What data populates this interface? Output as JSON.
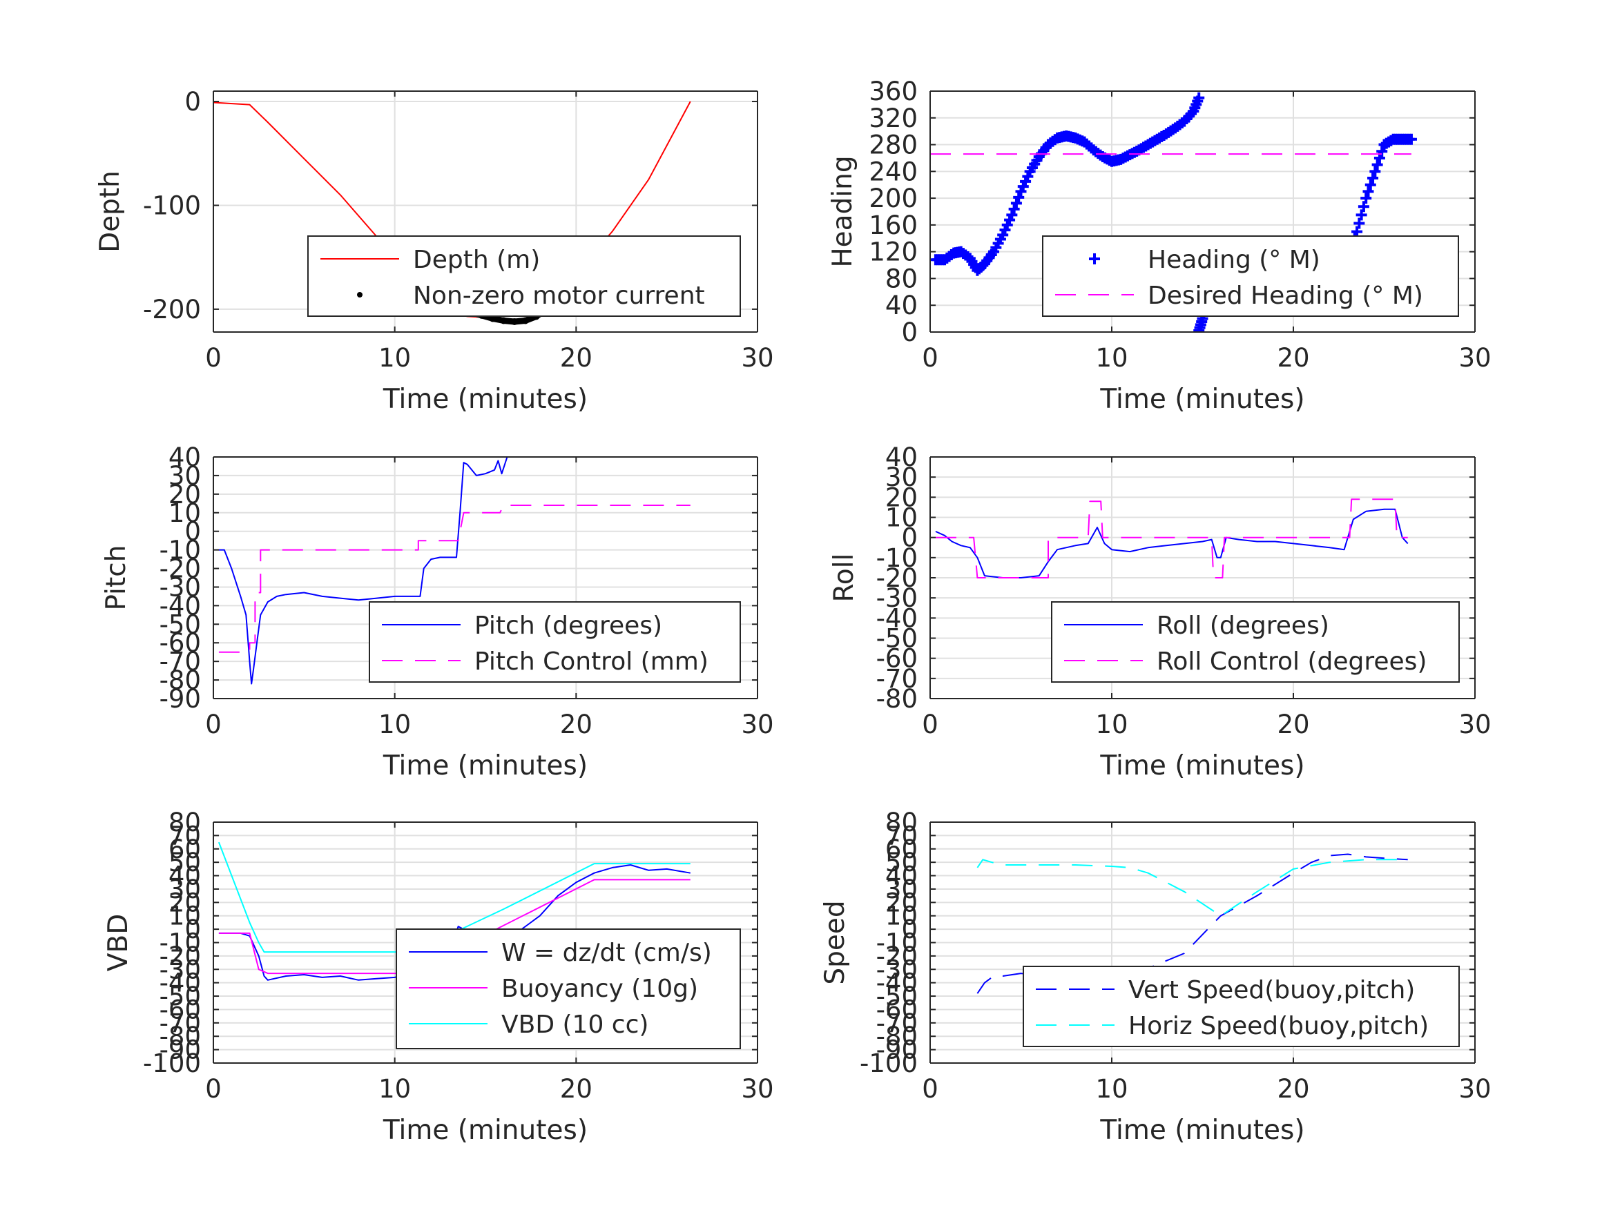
{
  "chart_data": [
    {
      "id": "depth",
      "type": "line",
      "xlabel": "Time (minutes)",
      "ylabel": "Depth",
      "xlim": [
        0,
        30
      ],
      "ylim": [
        -222,
        10
      ],
      "xticks": [
        0,
        10,
        20,
        30
      ],
      "yticks": [
        -200,
        -100,
        0
      ],
      "ytick_labels": [
        "-200",
        "-100",
        "0"
      ],
      "grid": true,
      "legend_position": "lower-right",
      "series": [
        {
          "name": "Depth (m)",
          "color": "#ff0000",
          "style": "solid",
          "x": [
            0,
            2,
            3,
            5,
            7,
            9,
            11,
            12,
            13,
            14,
            15,
            16,
            17,
            18,
            19,
            20,
            21,
            22,
            24,
            26.3
          ],
          "y": [
            -1,
            -3,
            -20,
            -55,
            -90,
            -130,
            -175,
            -195,
            -203,
            -207,
            -208,
            -211,
            -210,
            -205,
            -192,
            -175,
            -145,
            -125,
            -75,
            0
          ]
        },
        {
          "name": "Non-zero motor current",
          "color": "#000000",
          "style": "dots",
          "x": [
            11.2,
            11.8,
            12.4,
            13.0,
            13.6,
            14.2,
            14.8,
            15.4,
            16.0,
            16.6,
            17.2,
            17.8,
            18.4,
            19.0,
            19.6,
            20.2,
            20.8,
            21.1
          ],
          "y": [
            -187,
            -194,
            -199,
            -203,
            -201,
            -203,
            -206,
            -209,
            -211,
            -212,
            -211,
            -207,
            -200,
            -191,
            -181,
            -168,
            -155,
            -143
          ]
        }
      ]
    },
    {
      "id": "heading",
      "type": "line",
      "xlabel": "Time (minutes)",
      "ylabel": "Heading",
      "xlim": [
        0,
        30
      ],
      "ylim": [
        0,
        360
      ],
      "xticks": [
        0,
        10,
        20,
        30
      ],
      "yticks": [
        0,
        40,
        80,
        120,
        160,
        200,
        240,
        280,
        320,
        360
      ],
      "ytick_labels": [
        "0",
        "40",
        "80",
        "120",
        "160",
        "200",
        "240",
        "280",
        "320",
        "360"
      ],
      "grid": true,
      "legend_position": "lower-right",
      "series": [
        {
          "name": "Heading (° M)",
          "color": "#0000ff",
          "style": "plus",
          "x": [
            0.3,
            0.8,
            1.3,
            1.7,
            2.2,
            2.6,
            3.0,
            3.5,
            4.0,
            4.5,
            5.0,
            5.5,
            6.0,
            6.5,
            7.0,
            7.5,
            8.0,
            8.5,
            9.0,
            9.5,
            10.0,
            10.5,
            11.0,
            11.5,
            12.0,
            12.5,
            13.0,
            13.5,
            14.0,
            14.5,
            14.8,
            14.8,
            15.0,
            15.3,
            15.6,
            16.0,
            16.5,
            17.0,
            17.5,
            18.0,
            18.5,
            19.0,
            19.5,
            20.0,
            20.5,
            21.0,
            21.5,
            22.0,
            22.5,
            23.0,
            23.5,
            24.0,
            24.5,
            25.0,
            25.5,
            26.0,
            26.5
          ],
          "y": [
            108,
            108,
            118,
            120,
            110,
            92,
            102,
            120,
            145,
            175,
            210,
            240,
            262,
            280,
            290,
            293,
            290,
            284,
            272,
            262,
            255,
            258,
            265,
            272,
            280,
            288,
            296,
            305,
            315,
            330,
            350,
            2,
            20,
            45,
            68,
            88,
            98,
            105,
            110,
            112,
            115,
            118,
            120,
            118,
            120,
            122,
            128,
            120,
            125,
            118,
            150,
            200,
            240,
            280,
            288,
            288,
            288
          ]
        },
        {
          "name": "Desired Heading (° M)",
          "color": "#ff00ff",
          "style": "dashed",
          "x": [
            0,
            26.5
          ],
          "y": [
            266,
            266
          ]
        }
      ]
    },
    {
      "id": "pitch",
      "type": "line",
      "xlabel": "Time (minutes)",
      "ylabel": "Pitch",
      "xlim": [
        0,
        30
      ],
      "ylim": [
        -90,
        40
      ],
      "xticks": [
        0,
        10,
        20,
        30
      ],
      "yticks": [
        -90,
        -80,
        -70,
        -60,
        -50,
        -40,
        -30,
        -20,
        -10,
        0,
        10,
        20,
        30,
        40
      ],
      "ytick_labels": [
        "-90",
        "-80",
        "-70",
        "-60",
        "-50",
        "-40",
        "-30",
        "-20",
        "-10",
        "0",
        "10",
        "20",
        "30",
        "40"
      ],
      "grid": true,
      "legend_position": "lower-right",
      "series": [
        {
          "name": "Pitch (degrees)",
          "color": "#0000ff",
          "style": "solid",
          "x": [
            0.3,
            0.6,
            1.0,
            1.5,
            1.8,
            2.0,
            2.1,
            2.2,
            2.4,
            2.6,
            3.0,
            3.5,
            4.0,
            5.0,
            6.0,
            7.0,
            8.0,
            9.0,
            10.0,
            11.0,
            11.4,
            11.6,
            12.0,
            12.5,
            13.0,
            13.4,
            13.6,
            13.8,
            14.0,
            14.5,
            15.0,
            15.5,
            15.7,
            15.9,
            16.2
          ],
          "y": [
            -10,
            -10,
            -20,
            -35,
            -45,
            -70,
            -82,
            -75,
            -60,
            -45,
            -38,
            -35,
            -34,
            -33,
            -35,
            -36,
            -37,
            -36,
            -35,
            -35,
            -35,
            -20,
            -15,
            -14,
            -14,
            -14,
            10,
            37,
            36,
            30,
            31,
            33,
            38,
            31,
            40
          ]
        },
        {
          "name": "Pitch Control (mm)",
          "color": "#ff00ff",
          "style": "dashed",
          "x": [
            0.3,
            2.0,
            2.0,
            2.3,
            2.3,
            2.6,
            2.6,
            11.3,
            11.3,
            12.5,
            13.5,
            13.8,
            15.0,
            15.8,
            16.0,
            26.3
          ],
          "y": [
            -65,
            -65,
            -60,
            -60,
            -33,
            -33,
            -10,
            -10,
            -5,
            -5,
            -5,
            10,
            10,
            10,
            14,
            14
          ]
        }
      ]
    },
    {
      "id": "roll",
      "type": "line",
      "xlabel": "Time (minutes)",
      "ylabel": "Roll",
      "xlim": [
        0,
        30
      ],
      "ylim": [
        -80,
        40
      ],
      "xticks": [
        0,
        10,
        20,
        30
      ],
      "yticks": [
        -80,
        -70,
        -60,
        -50,
        -40,
        -30,
        -20,
        -10,
        0,
        10,
        20,
        30,
        40
      ],
      "ytick_labels": [
        "-80",
        "-70",
        "-60",
        "-50",
        "-40",
        "-30",
        "-20",
        "-10",
        "0",
        "10",
        "20",
        "30",
        "40"
      ],
      "grid": true,
      "legend_position": "lower-right",
      "series": [
        {
          "name": "Roll (degrees)",
          "color": "#0000ff",
          "style": "solid",
          "x": [
            0.3,
            0.8,
            1.2,
            1.7,
            2.2,
            2.6,
            3.0,
            4.0,
            5.0,
            6.0,
            6.5,
            7.0,
            8.0,
            8.7,
            9.2,
            9.6,
            10.0,
            11.0,
            12.0,
            13.0,
            14.0,
            15.0,
            15.5,
            15.8,
            16.0,
            16.3,
            17.0,
            18.0,
            19.0,
            20.0,
            21.0,
            22.0,
            22.8,
            23.3,
            24.0,
            25.0,
            25.6,
            26.0,
            26.3
          ],
          "y": [
            3,
            1,
            -2,
            -4,
            -5,
            -10,
            -19,
            -20,
            -20,
            -19,
            -12,
            -6,
            -4,
            -3,
            5,
            -3,
            -6,
            -7,
            -5,
            -4,
            -3,
            -2,
            -1,
            -10,
            -10,
            0,
            -1,
            -2,
            -2,
            -3,
            -4,
            -5,
            -6,
            9,
            13,
            14,
            14,
            0,
            -3
          ]
        },
        {
          "name": "Roll Control (degrees)",
          "color": "#ff00ff",
          "style": "dashed",
          "x": [
            0.3,
            2.4,
            2.6,
            6.5,
            6.5,
            8.7,
            8.8,
            9.4,
            9.5,
            15.5,
            15.6,
            16.1,
            16.2,
            23.1,
            23.2,
            25.6,
            25.7,
            26.3
          ],
          "y": [
            0,
            0,
            -20,
            -20,
            0,
            0,
            18,
            18,
            0,
            0,
            -20,
            -20,
            0,
            0,
            19,
            19,
            0,
            0
          ]
        }
      ]
    },
    {
      "id": "vbd",
      "type": "line",
      "xlabel": "Time (minutes)",
      "ylabel": "VBD",
      "xlim": [
        0,
        30
      ],
      "ylim": [
        -100,
        80
      ],
      "xticks": [
        0,
        10,
        20,
        30
      ],
      "yticks": [
        -100,
        -90,
        -80,
        -70,
        -60,
        -50,
        -40,
        -30,
        -20,
        -10,
        0,
        10,
        20,
        30,
        40,
        50,
        60,
        70,
        80
      ],
      "ytick_labels": [
        "-100",
        "-90",
        "-80",
        "-70",
        "-60",
        "-50",
        "-40",
        "-30",
        "-20",
        "-10",
        "0",
        "10",
        "20",
        "30",
        "40",
        "50",
        "60",
        "70",
        "80"
      ],
      "grid": true,
      "legend_position": "lower-right",
      "series": [
        {
          "name": "W = dz/dt (cm/s)",
          "color": "#0000ff",
          "style": "solid",
          "x": [
            0.3,
            1.5,
            2.0,
            2.5,
            2.8,
            3.0,
            4.0,
            5.0,
            6.0,
            7.0,
            8.0,
            9.0,
            10.0,
            11.0,
            11.5,
            12.0,
            13.0,
            13.5,
            13.8,
            14.0,
            14.5,
            15.0,
            16.0,
            17.0,
            18.0,
            19.0,
            20.0,
            21.0,
            22.0,
            23.0,
            24.0,
            25.0,
            26.3
          ],
          "y": [
            -3,
            -3,
            -5,
            -20,
            -35,
            -38,
            -35,
            -34,
            -36,
            -35,
            -38,
            -37,
            -36,
            -33,
            -25,
            -22,
            -18,
            2,
            0,
            -15,
            -12,
            -10,
            -5,
            0,
            10,
            25,
            35,
            42,
            46,
            48,
            44,
            45,
            42
          ]
        },
        {
          "name": "Buoyancy (10g)",
          "color": "#ff00ff",
          "style": "solid",
          "x": [
            0.3,
            2.0,
            2.5,
            3.0,
            10.0,
            11.0,
            11.5,
            21.0,
            26.3
          ],
          "y": [
            -3,
            -3,
            -30,
            -33,
            -33,
            -33,
            -28,
            37,
            37
          ]
        },
        {
          "name": "VBD (10 cc)",
          "color": "#00ffff",
          "style": "solid",
          "x": [
            0.3,
            2.0,
            2.5,
            2.8,
            10.8,
            11.0,
            16.0,
            21.0,
            26.3
          ],
          "y": [
            65,
            5,
            -10,
            -17,
            -17,
            -17,
            15,
            49,
            49
          ]
        }
      ]
    },
    {
      "id": "speed",
      "type": "line",
      "xlabel": "Time (minutes)",
      "ylabel": "Speed",
      "xlim": [
        0,
        30
      ],
      "ylim": [
        -100,
        80
      ],
      "xticks": [
        0,
        10,
        20,
        30
      ],
      "yticks": [
        -100,
        -90,
        -80,
        -70,
        -60,
        -50,
        -40,
        -30,
        -20,
        -10,
        0,
        10,
        20,
        30,
        40,
        50,
        60,
        70,
        80
      ],
      "ytick_labels": [
        "-100",
        "-90",
        "-80",
        "-70",
        "-60",
        "-50",
        "-40",
        "-30",
        "-20",
        "-10",
        "0",
        "10",
        "20",
        "30",
        "40",
        "50",
        "60",
        "70",
        "80"
      ],
      "grid": true,
      "legend_position": "lower-right",
      "series": [
        {
          "name": "Vert Speed(buoy,pitch)",
          "color": "#0000ff",
          "style": "dashed",
          "x": [
            2.6,
            3.0,
            3.5,
            4.0,
            5.0,
            6.0,
            7.0,
            8.0,
            9.0,
            10.0,
            11.0,
            11.5,
            14.0,
            16.0,
            18.0,
            20.0,
            21.0,
            22.0,
            23.0,
            24.0,
            25.0,
            26.3
          ],
          "y": [
            -48,
            -40,
            -35,
            -35,
            -33,
            -35,
            -35,
            -36,
            -35,
            -35,
            -34,
            -32,
            -18,
            10,
            25,
            42,
            50,
            55,
            56,
            54,
            53,
            52
          ]
        },
        {
          "name": "Horiz Speed(buoy,pitch)",
          "color": "#00ffff",
          "style": "dashed",
          "x": [
            2.6,
            2.9,
            3.4,
            4.0,
            6.0,
            8.0,
            10.0,
            11.0,
            12.0,
            14.0,
            16.0,
            18.0,
            20.0,
            22.0,
            24.0,
            26.3
          ],
          "y": [
            46,
            52,
            50,
            48,
            48,
            48,
            47,
            46,
            42,
            28,
            10,
            28,
            45,
            50,
            52,
            52
          ]
        }
      ]
    }
  ]
}
